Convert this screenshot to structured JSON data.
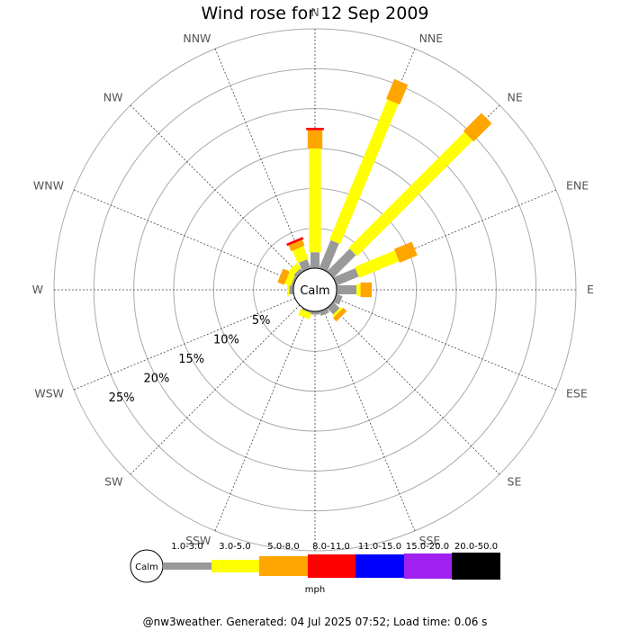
{
  "title": "Wind rose for 12 Sep 2009",
  "footer": "@nw3weather. Generated: 04 Jul 2025 07:52; Load time: 0.06 s",
  "chart_data": {
    "type": "windrose",
    "title": "Wind rose for 12 Sep 2009",
    "directions": [
      "N",
      "NNE",
      "NE",
      "ENE",
      "E",
      "ESE",
      "SE",
      "SSE",
      "S",
      "SSW",
      "SW",
      "WSW",
      "W",
      "WNW",
      "NW",
      "NNW"
    ],
    "radial_unit": "%",
    "radial_max": 30,
    "radial_ticks": [
      5,
      10,
      15,
      20,
      25
    ],
    "radial_tick_labels": [
      "5%",
      "10%",
      "15%",
      "20%",
      "25%"
    ],
    "calm_label": "Calm",
    "speed_unit": "mph",
    "speed_bins": [
      {
        "label": "1.0-3.0",
        "color": "#999999"
      },
      {
        "label": "3.0-5.0",
        "color": "#ffff00"
      },
      {
        "label": "5.0-8.0",
        "color": "#ffa500"
      },
      {
        "label": "8.0-11.0",
        "color": "#ff0000"
      },
      {
        "label": "11.0-15.0",
        "color": "#0000ff"
      },
      {
        "label": "15.0-20.0",
        "color": "#a020f0"
      },
      {
        "label": "20.0-50.0",
        "color": "#000000"
      }
    ],
    "series": [
      {
        "direction": "N",
        "values": [
          2.0,
          13.0,
          2.3,
          0.3,
          0,
          0,
          0
        ]
      },
      {
        "direction": "NNE",
        "values": [
          3.8,
          19.0,
          2.7,
          0,
          0,
          0,
          0
        ]
      },
      {
        "direction": "NE",
        "values": [
          4.0,
          20.5,
          3.2,
          0,
          0,
          0,
          0
        ]
      },
      {
        "direction": "ENE",
        "values": [
          3.0,
          5.4,
          2.4,
          0,
          0,
          0,
          0
        ]
      },
      {
        "direction": "E",
        "values": [
          2.5,
          0.5,
          1.4,
          0,
          0,
          0,
          0
        ]
      },
      {
        "direction": "ESE",
        "values": [
          0.8,
          0,
          0,
          0,
          0,
          0,
          0
        ]
      },
      {
        "direction": "SE",
        "values": [
          1.1,
          0.3,
          0.6,
          0,
          0,
          0,
          0
        ]
      },
      {
        "direction": "SSE",
        "values": [
          0.6,
          0,
          0,
          0,
          0,
          0,
          0
        ]
      },
      {
        "direction": "S",
        "values": [
          0.4,
          0,
          0,
          0,
          0,
          0,
          0
        ]
      },
      {
        "direction": "SSW",
        "values": [
          0.2,
          0.8,
          0,
          0,
          0,
          0,
          0
        ]
      },
      {
        "direction": "SW",
        "values": [
          0,
          0,
          0,
          0,
          0,
          0,
          0
        ]
      },
      {
        "direction": "WSW",
        "values": [
          0,
          0,
          0,
          0,
          0,
          0,
          0
        ]
      },
      {
        "direction": "W",
        "values": [
          0.5,
          0.3,
          0,
          0,
          0,
          0,
          0
        ]
      },
      {
        "direction": "WNW",
        "values": [
          0.3,
          0.8,
          0.9,
          0,
          0,
          0,
          0
        ]
      },
      {
        "direction": "NW",
        "values": [
          0.5,
          0.8,
          0,
          0,
          0,
          0,
          0
        ]
      },
      {
        "direction": "NNW",
        "values": [
          1.2,
          1.7,
          0.8,
          0.3,
          0,
          0,
          0
        ]
      }
    ],
    "grid": true,
    "legend_position": "bottom"
  }
}
